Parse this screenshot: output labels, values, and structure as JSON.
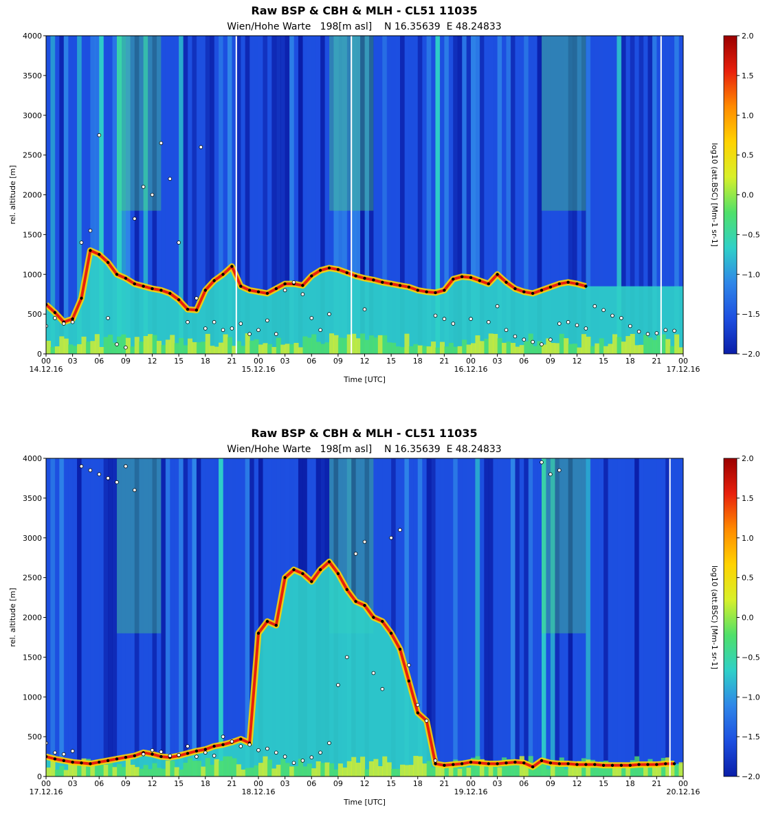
{
  "colors": {
    "ink": "#000000",
    "colormap": [
      "#0a1ea8",
      "#1d4fe0",
      "#2f86e8",
      "#2fd0c8",
      "#4fe06a",
      "#d8f02a",
      "#ffd200",
      "#ff8a00",
      "#e8200c",
      "#9a0000"
    ],
    "sparse_signal": "#ffffff",
    "cbh_marker": "#ffffff",
    "mlh_marker": "#000000"
  },
  "chart_data": [
    {
      "type": "heatmap",
      "title": "Raw BSP & CBH & MLH - CL51 11035",
      "subtitle": "Wien/Hohe Warte   198[m asl]    N 16.35639  E 48.24833",
      "xlabel": "Time [UTC]",
      "ylabel": "rel. altitude [m]",
      "ylim": [
        0,
        4000
      ],
      "y_ticks": [
        "0",
        "500",
        "1000",
        "1500",
        "2000",
        "2500",
        "3000",
        "3500",
        "4000"
      ],
      "x_ticks": [
        "00",
        "03",
        "06",
        "09",
        "12",
        "15",
        "18",
        "21",
        "00",
        "03",
        "06",
        "09",
        "12",
        "15",
        "18",
        "21",
        "00",
        "03",
        "06",
        "09",
        "12",
        "15",
        "18",
        "21",
        "00"
      ],
      "date_labels": [
        {
          "hour": 0,
          "label": "14.12.16"
        },
        {
          "hour": 24,
          "label": "15.12.16"
        },
        {
          "hour": 48,
          "label": "16.12.16"
        },
        {
          "hour": 72,
          "label": "17.12.16"
        }
      ],
      "x_range_hours": [
        0,
        72
      ],
      "colorbar": {
        "label": "log10 (att.BSC) [Mm-1 sr-1]",
        "range": [
          -2.0,
          2.0
        ],
        "ticks": [
          "2.0",
          "1.5",
          "1.0",
          "0.5",
          "0.0",
          "−0.5",
          "−1.0",
          "−1.5",
          "−2.0"
        ]
      },
      "mlh_points": [
        [
          0,
          620
        ],
        [
          1,
          520
        ],
        [
          2,
          400
        ],
        [
          3,
          440
        ],
        [
          4,
          700
        ],
        [
          5,
          1300
        ],
        [
          6,
          1250
        ],
        [
          7,
          1150
        ],
        [
          8,
          1000
        ],
        [
          9,
          950
        ],
        [
          10,
          880
        ],
        [
          11,
          850
        ],
        [
          12,
          820
        ],
        [
          13,
          800
        ],
        [
          14,
          760
        ],
        [
          15,
          680
        ],
        [
          16,
          560
        ],
        [
          17,
          550
        ],
        [
          18,
          800
        ],
        [
          19,
          920
        ],
        [
          20,
          1000
        ],
        [
          21,
          1100
        ],
        [
          22,
          850
        ],
        [
          23,
          800
        ],
        [
          24,
          780
        ],
        [
          25,
          760
        ],
        [
          26,
          820
        ],
        [
          27,
          880
        ],
        [
          28,
          880
        ],
        [
          29,
          860
        ],
        [
          30,
          980
        ],
        [
          31,
          1050
        ],
        [
          32,
          1080
        ],
        [
          33,
          1060
        ],
        [
          34,
          1020
        ],
        [
          35,
          980
        ],
        [
          36,
          950
        ],
        [
          37,
          930
        ],
        [
          38,
          900
        ],
        [
          39,
          880
        ],
        [
          40,
          860
        ],
        [
          41,
          840
        ],
        [
          42,
          800
        ],
        [
          43,
          780
        ],
        [
          44,
          770
        ],
        [
          45,
          800
        ],
        [
          46,
          940
        ],
        [
          47,
          970
        ],
        [
          48,
          960
        ],
        [
          49,
          920
        ],
        [
          50,
          880
        ],
        [
          51,
          1000
        ],
        [
          52,
          900
        ],
        [
          53,
          820
        ],
        [
          54,
          780
        ],
        [
          55,
          760
        ],
        [
          56,
          800
        ],
        [
          57,
          840
        ],
        [
          58,
          880
        ],
        [
          59,
          900
        ],
        [
          60,
          880
        ],
        [
          61,
          850
        ]
      ],
      "cbh_points": [
        [
          0,
          350
        ],
        [
          1,
          450
        ],
        [
          2,
          380
        ],
        [
          3,
          400
        ],
        [
          4,
          1400
        ],
        [
          5,
          1550
        ],
        [
          6,
          2750
        ],
        [
          7,
          450
        ],
        [
          8,
          120
        ],
        [
          9,
          80
        ],
        [
          10,
          1700
        ],
        [
          11,
          2100
        ],
        [
          12,
          2000
        ],
        [
          13,
          2650
        ],
        [
          14,
          2200
        ],
        [
          15,
          1400
        ],
        [
          16,
          400
        ],
        [
          17,
          700
        ],
        [
          17.5,
          2600
        ],
        [
          18,
          320
        ],
        [
          19,
          400
        ],
        [
          20,
          300
        ],
        [
          21,
          320
        ],
        [
          22,
          380
        ],
        [
          23,
          250
        ],
        [
          24,
          300
        ],
        [
          25,
          420
        ],
        [
          26,
          250
        ],
        [
          27,
          800
        ],
        [
          28,
          900
        ],
        [
          29,
          750
        ],
        [
          30,
          450
        ],
        [
          31,
          300
        ],
        [
          32,
          500
        ],
        [
          36,
          560
        ],
        [
          44,
          480
        ],
        [
          45,
          440
        ],
        [
          46,
          380
        ],
        [
          48,
          440
        ],
        [
          50,
          400
        ],
        [
          51,
          600
        ],
        [
          52,
          300
        ],
        [
          53,
          220
        ],
        [
          54,
          180
        ],
        [
          55,
          150
        ],
        [
          56,
          120
        ],
        [
          57,
          180
        ],
        [
          58,
          380
        ],
        [
          59,
          400
        ],
        [
          60,
          360
        ],
        [
          61,
          320
        ],
        [
          62,
          600
        ],
        [
          63,
          550
        ],
        [
          64,
          480
        ],
        [
          65,
          450
        ],
        [
          66,
          350
        ],
        [
          67,
          280
        ],
        [
          68,
          250
        ],
        [
          69,
          260
        ],
        [
          70,
          300
        ],
        [
          71,
          290
        ]
      ],
      "missing_hours": [
        21.5,
        34.5,
        69.5
      ]
    },
    {
      "type": "heatmap",
      "title": "Raw BSP & CBH & MLH - CL51 11035",
      "subtitle": "Wien/Hohe Warte   198[m asl]    N 16.35639  E 48.24833",
      "xlabel": "Time [UTC]",
      "ylabel": "rel. altitude [m]",
      "ylim": [
        0,
        4000
      ],
      "y_ticks": [
        "0",
        "500",
        "1000",
        "1500",
        "2000",
        "2500",
        "3000",
        "3500",
        "4000"
      ],
      "x_ticks": [
        "00",
        "03",
        "06",
        "09",
        "12",
        "15",
        "18",
        "21",
        "00",
        "03",
        "06",
        "09",
        "12",
        "15",
        "18",
        "21",
        "00",
        "03",
        "06",
        "09",
        "12",
        "15",
        "18",
        "21",
        "00"
      ],
      "date_labels": [
        {
          "hour": 0,
          "label": "17.12.16"
        },
        {
          "hour": 24,
          "label": "18.12.16"
        },
        {
          "hour": 48,
          "label": "19.12.16"
        },
        {
          "hour": 72,
          "label": "20.12.16"
        }
      ],
      "x_range_hours": [
        0,
        72
      ],
      "colorbar": {
        "label": "log10 (att.BSC) [Mm-1 sr-1]",
        "range": [
          -2.0,
          2.0
        ],
        "ticks": [
          "2.0",
          "1.5",
          "1.0",
          "0.5",
          "0.0",
          "−0.5",
          "−1.0",
          "−1.5",
          "−2.0"
        ]
      },
      "mlh_points": [
        [
          0,
          250
        ],
        [
          1,
          220
        ],
        [
          2,
          200
        ],
        [
          3,
          180
        ],
        [
          4,
          170
        ],
        [
          5,
          160
        ],
        [
          6,
          180
        ],
        [
          7,
          200
        ],
        [
          8,
          220
        ],
        [
          9,
          240
        ],
        [
          10,
          260
        ],
        [
          11,
          300
        ],
        [
          12,
          280
        ],
        [
          13,
          250
        ],
        [
          14,
          240
        ],
        [
          15,
          260
        ],
        [
          16,
          290
        ],
        [
          17,
          320
        ],
        [
          18,
          340
        ],
        [
          19,
          380
        ],
        [
          20,
          400
        ],
        [
          21,
          430
        ],
        [
          22,
          470
        ],
        [
          23,
          420
        ],
        [
          24,
          1800
        ],
        [
          25,
          1950
        ],
        [
          26,
          1900
        ],
        [
          27,
          2500
        ],
        [
          28,
          2600
        ],
        [
          29,
          2550
        ],
        [
          30,
          2450
        ],
        [
          31,
          2600
        ],
        [
          32,
          2700
        ],
        [
          33,
          2550
        ],
        [
          34,
          2350
        ],
        [
          35,
          2200
        ],
        [
          36,
          2150
        ],
        [
          37,
          2000
        ],
        [
          38,
          1950
        ],
        [
          39,
          1800
        ],
        [
          40,
          1600
        ],
        [
          41,
          1200
        ],
        [
          42,
          800
        ],
        [
          43,
          700
        ],
        [
          44,
          160
        ],
        [
          45,
          140
        ],
        [
          46,
          150
        ],
        [
          47,
          160
        ],
        [
          48,
          180
        ],
        [
          49,
          170
        ],
        [
          50,
          160
        ],
        [
          51,
          160
        ],
        [
          52,
          170
        ],
        [
          53,
          180
        ],
        [
          54,
          170
        ],
        [
          55,
          120
        ],
        [
          56,
          200
        ],
        [
          57,
          170
        ],
        [
          58,
          160
        ],
        [
          59,
          160
        ],
        [
          60,
          150
        ],
        [
          61,
          150
        ],
        [
          62,
          150
        ],
        [
          63,
          140
        ],
        [
          64,
          140
        ],
        [
          65,
          140
        ],
        [
          66,
          140
        ],
        [
          67,
          150
        ],
        [
          68,
          150
        ],
        [
          69,
          150
        ],
        [
          70,
          160
        ],
        [
          71,
          160
        ]
      ],
      "cbh_points": [
        [
          0,
          420
        ],
        [
          1,
          300
        ],
        [
          2,
          280
        ],
        [
          3,
          320
        ],
        [
          4,
          3900
        ],
        [
          5,
          3850
        ],
        [
          6,
          3800
        ],
        [
          7,
          3750
        ],
        [
          8,
          3700
        ],
        [
          9,
          3900
        ],
        [
          10,
          3600
        ],
        [
          11,
          280
        ],
        [
          12,
          330
        ],
        [
          13,
          310
        ],
        [
          14,
          260
        ],
        [
          15,
          270
        ],
        [
          16,
          380
        ],
        [
          17,
          250
        ],
        [
          18,
          300
        ],
        [
          19,
          260
        ],
        [
          20,
          500
        ],
        [
          21,
          440
        ],
        [
          22,
          380
        ],
        [
          23,
          400
        ],
        [
          24,
          330
        ],
        [
          25,
          350
        ],
        [
          26,
          300
        ],
        [
          27,
          250
        ],
        [
          28,
          170
        ],
        [
          29,
          200
        ],
        [
          30,
          240
        ],
        [
          31,
          300
        ],
        [
          32,
          420
        ],
        [
          33,
          1150
        ],
        [
          34,
          1500
        ],
        [
          35,
          2800
        ],
        [
          36,
          2950
        ],
        [
          37,
          1300
        ],
        [
          38,
          1100
        ],
        [
          39,
          3000
        ],
        [
          40,
          3100
        ],
        [
          41,
          1400
        ],
        [
          42,
          900
        ],
        [
          43,
          700
        ],
        [
          44,
          200
        ],
        [
          56,
          3950
        ],
        [
          57,
          3800
        ],
        [
          58,
          3850
        ]
      ],
      "missing_hours": [
        70.5
      ]
    }
  ]
}
